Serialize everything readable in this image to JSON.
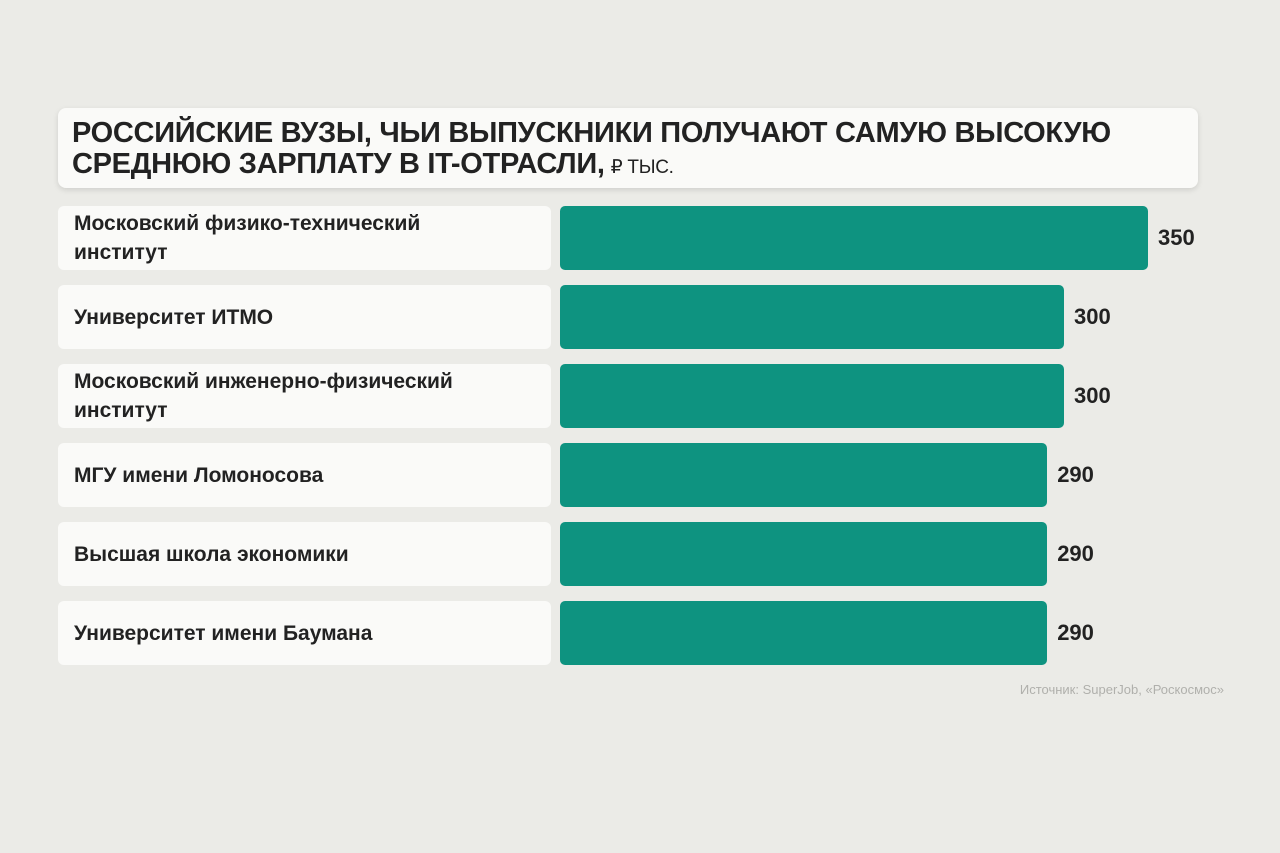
{
  "chart_data": {
    "type": "bar",
    "title": "РОССИЙСКИЕ ВУЗЫ, ЧЬИ ВЫПУСКНИКИ ПОЛУЧАЮТ САМУЮ ВЫСОКУЮ СРЕДНЮЮ ЗАРПЛАТУ В IT-ОТРАСЛИ,",
    "unit": "₽ ТЫС.",
    "categories": [
      "Московский физико-технический институт",
      "Университет ИТМО",
      "Московский инженерно-физический институт",
      "МГУ имени Ломоносова",
      "Высшая школа экономики",
      "Университет имени Баумана"
    ],
    "values": [
      350,
      300,
      300,
      290,
      290,
      290
    ],
    "color": "#0e9380",
    "source": "Источник: SuperJob, «Роскосмос»"
  }
}
